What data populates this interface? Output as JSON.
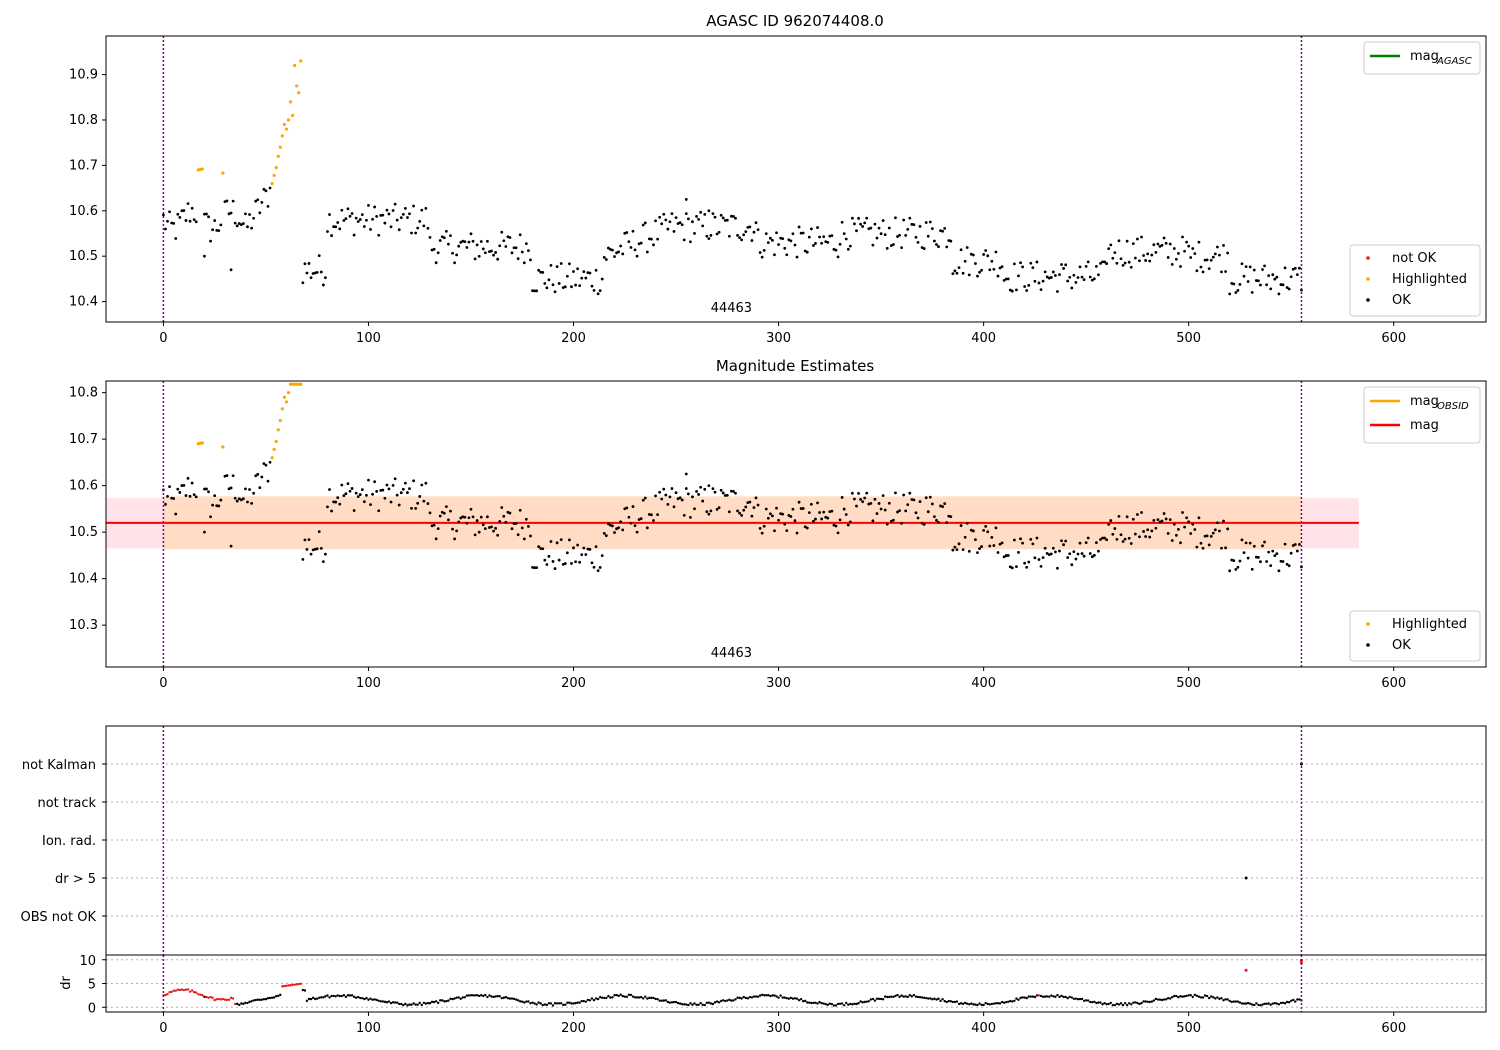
{
  "colors": {
    "ok": "#000000",
    "not_ok": "#e41a1c",
    "highlighted": "#ffa500",
    "mag_agasc": "#008000",
    "mag_obsid": "#ffa500",
    "mag": "#ff0000",
    "obs_band": "#ffdab9",
    "mag_band": "#ffc0cb",
    "boundary": "#800080",
    "grid": "#b0b0b0"
  },
  "chart_data": [
    {
      "id": "top",
      "type": "scatter",
      "title": "AGASC ID 962074408.0",
      "xlim": [
        -28,
        645
      ],
      "ylim": [
        10.355,
        10.985
      ],
      "xticks": [
        0,
        100,
        200,
        300,
        400,
        500,
        600
      ],
      "xtick_labels": [
        "0",
        "100",
        "200",
        "300",
        "400",
        "500",
        "600"
      ],
      "yticks": [
        10.4,
        10.5,
        10.6,
        10.7,
        10.8,
        10.9
      ],
      "ytick_labels": [
        "10.4",
        "10.5",
        "10.6",
        "10.7",
        "10.8",
        "10.9"
      ],
      "obsid_boundaries": [
        0,
        555
      ],
      "obsid_label": "44463",
      "obsid_label_x": 277,
      "legend_lines": [
        {
          "label": "mag",
          "sub": "AGASC",
          "color": "mag_agasc"
        }
      ],
      "legend_markers": [
        {
          "label": "not OK",
          "color": "not_ok"
        },
        {
          "label": "Highlighted",
          "color": "highlighted"
        },
        {
          "label": "OK",
          "color": "ok"
        }
      ],
      "highlighted_points": [
        [
          17,
          10.69
        ],
        [
          18,
          10.691
        ],
        [
          19,
          10.692
        ],
        [
          29,
          10.683
        ],
        [
          53,
          10.66
        ],
        [
          54,
          10.678
        ],
        [
          55,
          10.695
        ],
        [
          56,
          10.72
        ],
        [
          57,
          10.74
        ],
        [
          58,
          10.765
        ],
        [
          59,
          10.79
        ],
        [
          60,
          10.78
        ],
        [
          61,
          10.8
        ],
        [
          62,
          10.84
        ],
        [
          63,
          10.81
        ],
        [
          64,
          10.92
        ],
        [
          65,
          10.875
        ],
        [
          66,
          10.86
        ],
        [
          67,
          10.93
        ]
      ]
    },
    {
      "id": "middle",
      "type": "scatter",
      "title": "Magnitude Estimates",
      "xlim": [
        -28,
        645
      ],
      "ylim": [
        10.21,
        10.825
      ],
      "xticks": [
        0,
        100,
        200,
        300,
        400,
        500,
        600
      ],
      "xtick_labels": [
        "0",
        "100",
        "200",
        "300",
        "400",
        "500",
        "600"
      ],
      "yticks": [
        10.3,
        10.4,
        10.5,
        10.6,
        10.7,
        10.8
      ],
      "ytick_labels": [
        "10.3",
        "10.4",
        "10.5",
        "10.6",
        "10.7",
        "10.8"
      ],
      "obsid_boundaries": [
        0,
        555
      ],
      "obsid_label": "44463",
      "obsid_label_x": 277,
      "mag": 10.52,
      "mag_band": [
        -28,
        583,
        10.465,
        10.573
      ],
      "mag_obsid": 10.52,
      "obs_band": [
        0,
        555,
        10.463,
        10.577
      ],
      "legend_lines": [
        {
          "label": "mag",
          "sub": "OBSID",
          "color": "mag_obsid"
        },
        {
          "label": "mag",
          "sub": "",
          "color": "mag"
        }
      ],
      "legend_markers": [
        {
          "label": "Highlighted",
          "color": "highlighted"
        },
        {
          "label": "OK",
          "color": "ok"
        }
      ],
      "highlighted_points": [
        [
          17,
          10.69
        ],
        [
          18,
          10.691
        ],
        [
          19,
          10.692
        ],
        [
          29,
          10.683
        ],
        [
          53,
          10.66
        ],
        [
          54,
          10.678
        ],
        [
          55,
          10.695
        ],
        [
          56,
          10.72
        ],
        [
          57,
          10.74
        ],
        [
          58,
          10.765
        ],
        [
          59,
          10.79
        ],
        [
          60,
          10.78
        ],
        [
          61,
          10.8
        ],
        [
          62,
          10.818
        ],
        [
          63,
          10.818
        ],
        [
          64,
          10.818
        ],
        [
          65,
          10.818
        ],
        [
          66,
          10.818
        ],
        [
          67,
          10.818
        ]
      ]
    },
    {
      "id": "flags",
      "type": "scatter",
      "xlim": [
        -28,
        645
      ],
      "categories": [
        "not Kalman",
        "not track",
        "Ion. rad.",
        "dr > 5",
        "OBS not OK"
      ],
      "flag_points": [
        {
          "category": "not Kalman",
          "x": 555
        },
        {
          "category": "dr > 5",
          "x": 528
        }
      ],
      "obsid_boundaries": [
        0,
        555
      ]
    },
    {
      "id": "dr",
      "type": "scatter",
      "ylabel": "dr",
      "xlim": [
        -28,
        645
      ],
      "ylim": [
        -1,
        11
      ],
      "xticks": [
        0,
        100,
        200,
        300,
        400,
        500,
        600
      ],
      "xtick_labels": [
        "0",
        "100",
        "200",
        "300",
        "400",
        "500",
        "600"
      ],
      "yticks": [
        0,
        5,
        10
      ],
      "ytick_labels": [
        "0",
        "5",
        "10"
      ],
      "obsid_boundaries": [
        0,
        555
      ],
      "red_points": [
        [
          528,
          7.8
        ],
        [
          555,
          9.4
        ],
        [
          555,
          9.9
        ]
      ]
    }
  ]
}
